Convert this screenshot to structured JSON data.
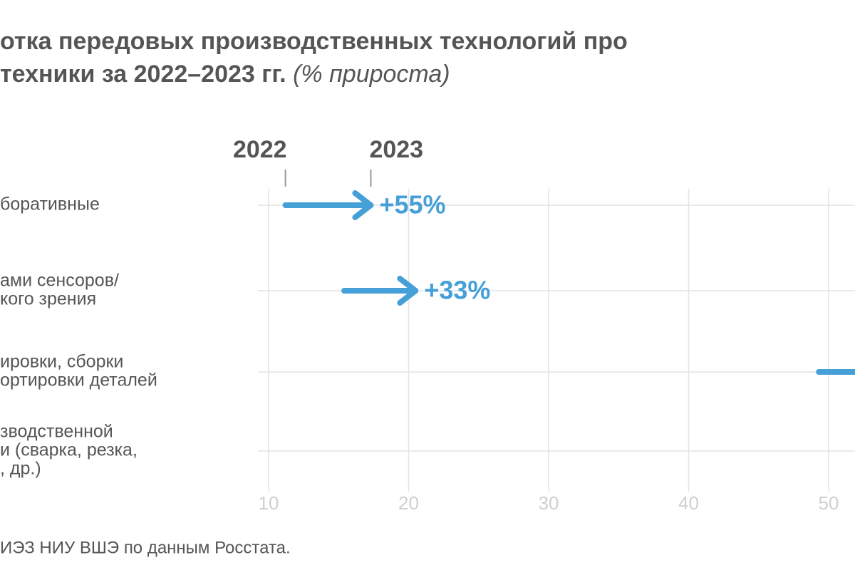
{
  "chart_data": {
    "type": "arrow",
    "title": [
      "отка передовых производственных технологий про",
      "техники за 2022–2023 гг."
    ],
    "subtitle": "(% прироста)",
    "categories": [
      [
        "боративные"
      ],
      [
        "ами сенсоров/",
        "кого зрения"
      ],
      [
        "ировки, сборки",
        "ортировки деталей"
      ],
      [
        "зводственной",
        "и (сварка, резка,",
        ", др.)"
      ]
    ],
    "series": [
      {
        "name": "2022",
        "color": "#45a0d8",
        "values": [
          11.2,
          15.4,
          49.3,
          null
        ]
      },
      {
        "name": "2023",
        "color": "#45a0d8",
        "values": [
          17.3,
          20.5,
          null,
          null
        ]
      }
    ],
    "growth": {
      "values": [
        55,
        33,
        null,
        null
      ],
      "value_labels": [
        "+55%",
        "+33%",
        null,
        null
      ]
    },
    "xlim": [
      10,
      50
    ],
    "xticks": [
      10,
      20,
      30,
      40,
      50
    ],
    "grid": true,
    "source": "ИЭЗ НИУ ВШЭ по данным Росстата."
  }
}
